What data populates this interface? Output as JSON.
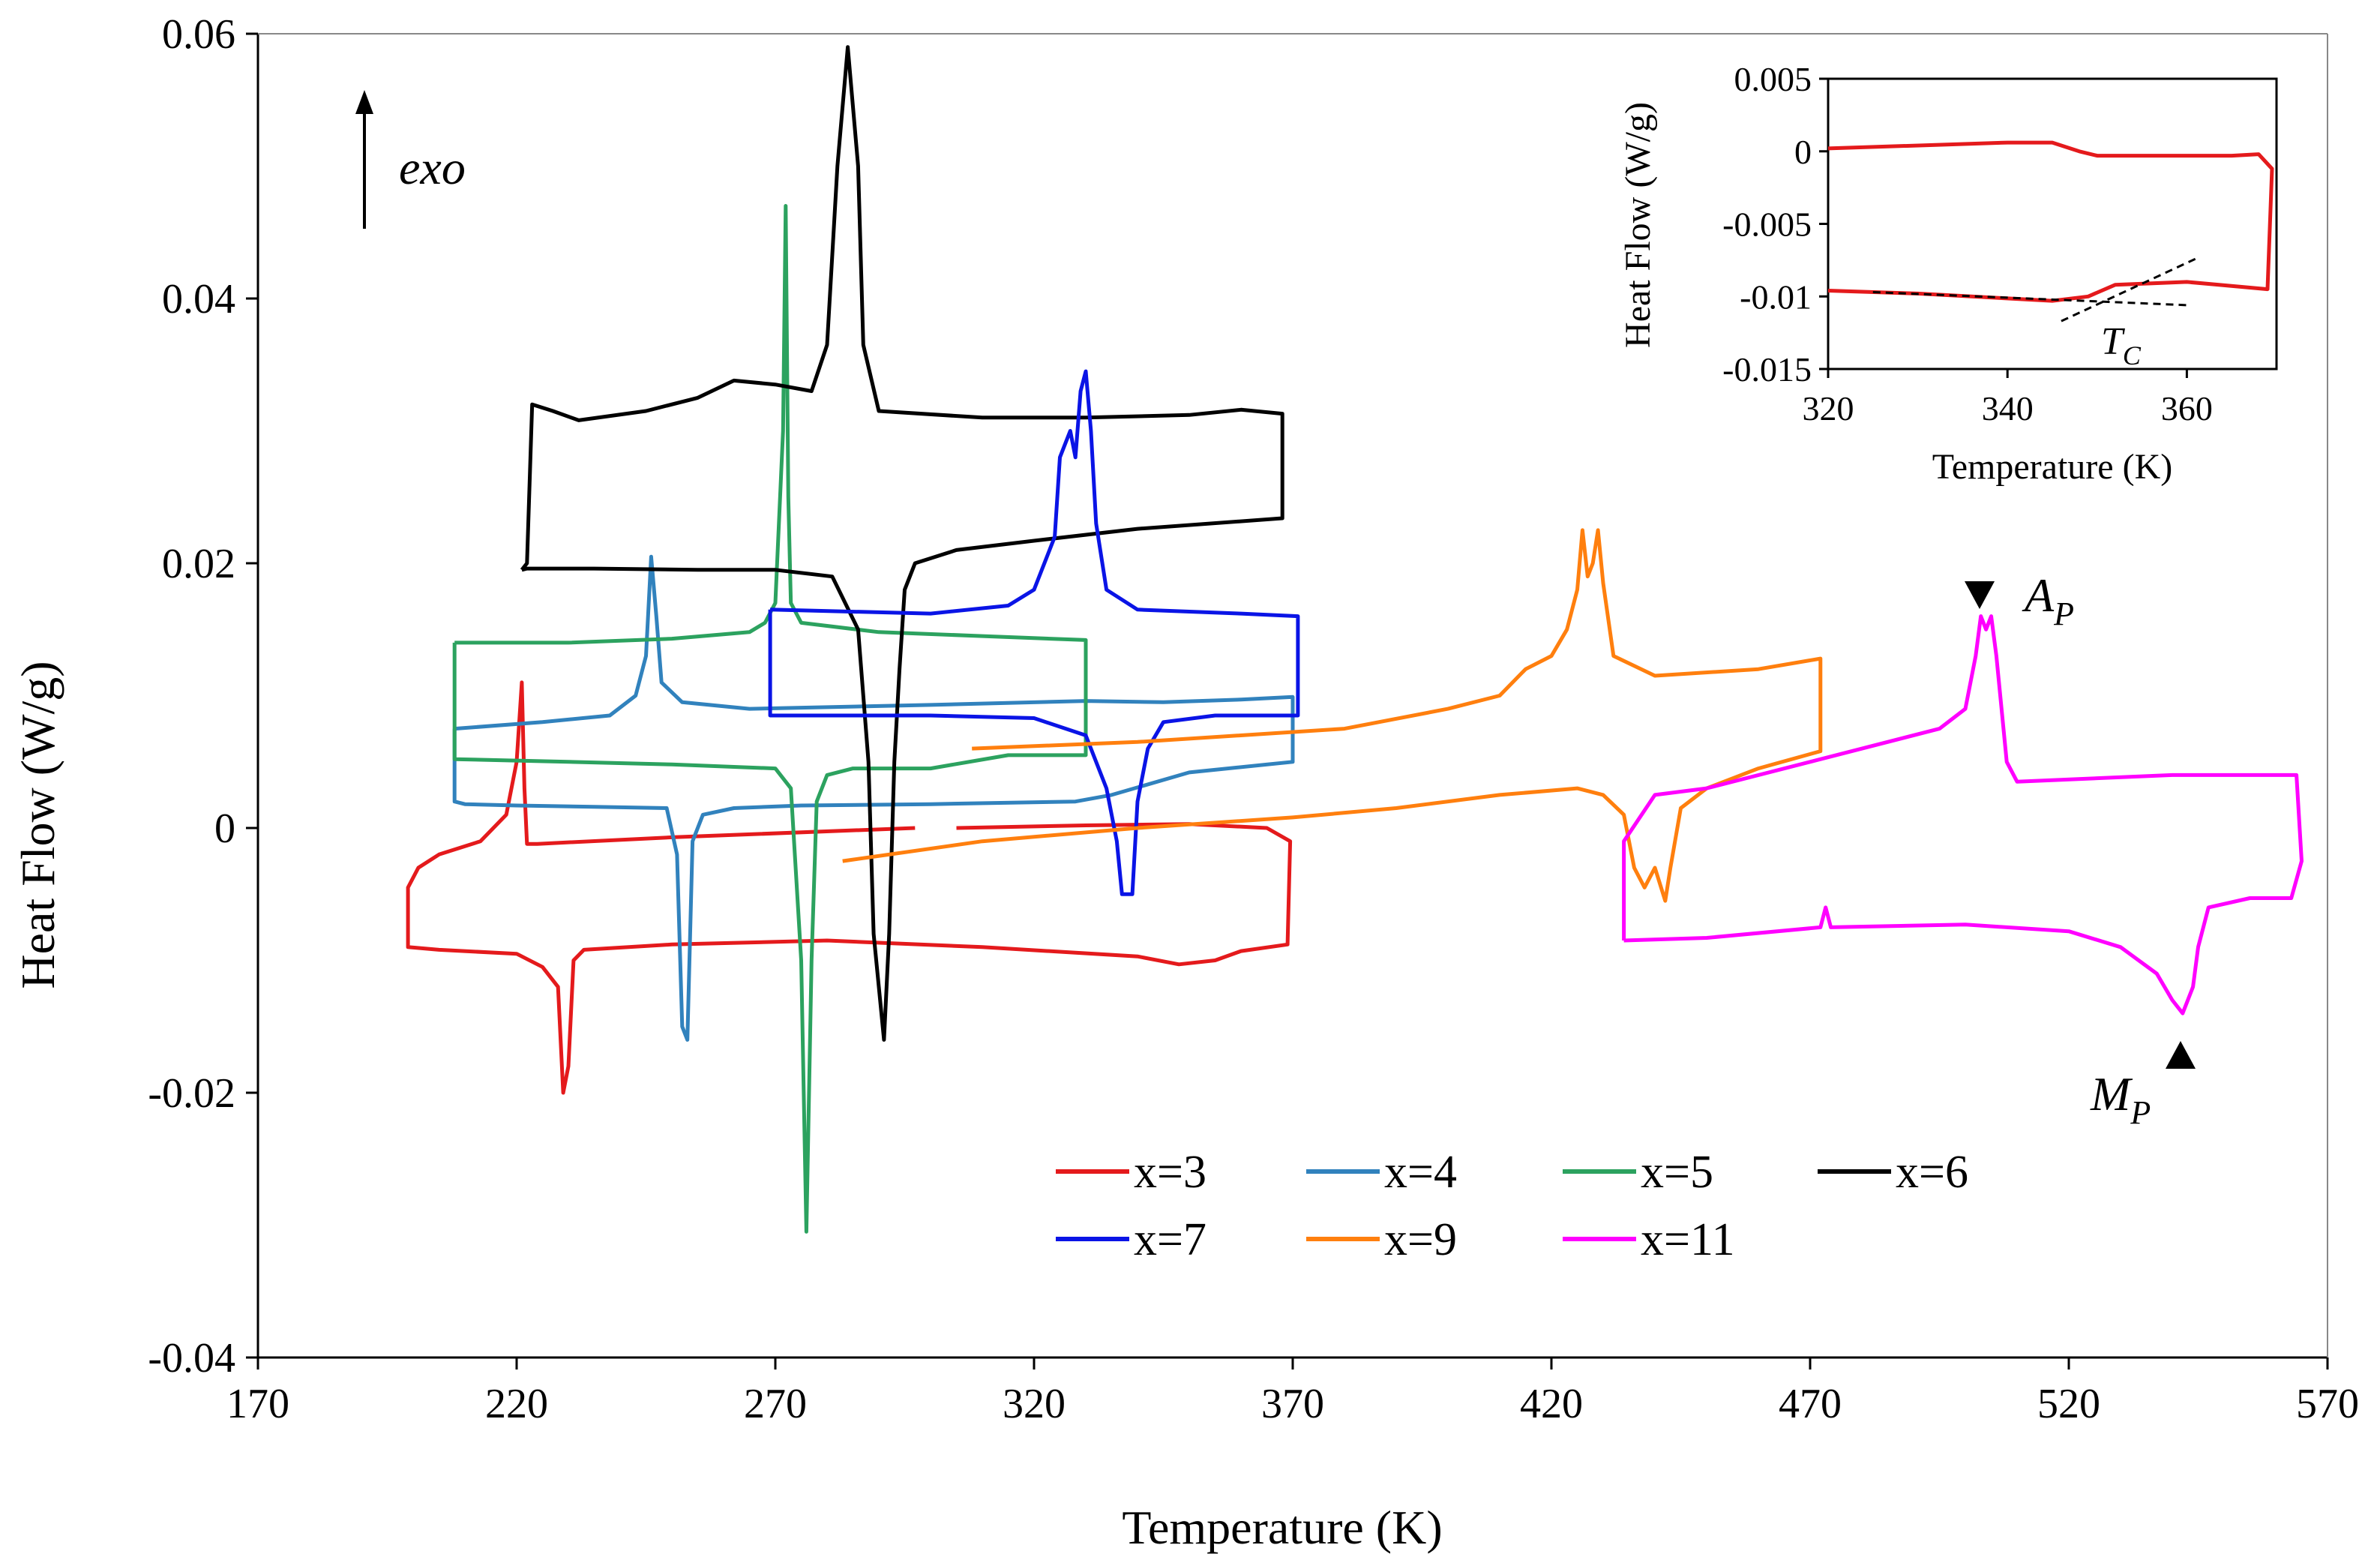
{
  "chart_data": {
    "type": "line",
    "title": "",
    "xlabel": "Temperature (K)",
    "ylabel": "Heat Flow (W/g)",
    "xlim": [
      170,
      570
    ],
    "ylim": [
      -0.04,
      0.06
    ],
    "xticks": [
      170,
      220,
      270,
      320,
      370,
      420,
      470,
      520,
      570
    ],
    "xtick_labels": [
      "170",
      "220",
      "270",
      "320",
      "370",
      "420",
      "470",
      "520",
      "570"
    ],
    "yticks": [
      -0.04,
      -0.02,
      0,
      0.02,
      0.04,
      0.06
    ],
    "ytick_labels": [
      "-0.04",
      "-0.02",
      "0",
      "0.02",
      "0.04",
      "0.06"
    ],
    "grid": false,
    "legend_position": "bottom-center",
    "annotations": {
      "exo": "exo",
      "ap_main": "A",
      "ap_sub": "P",
      "mp_main": "M",
      "mp_sub": "P",
      "tc_main": "T",
      "tc_sub": "C"
    },
    "series": [
      {
        "name": "x=3",
        "color": "#e41a1c",
        "points": [
          [
            297,
            0.0
          ],
          [
            250,
            -0.0007
          ],
          [
            224,
            -0.0012
          ],
          [
            222,
            -0.0012
          ],
          [
            221.5,
            0.003
          ],
          [
            221,
            0.011
          ],
          [
            220,
            0.005
          ],
          [
            218,
            0.001
          ],
          [
            213,
            -0.001
          ],
          [
            205,
            -0.002
          ],
          [
            201,
            -0.003
          ],
          [
            199,
            -0.0045
          ],
          [
            199,
            -0.009
          ],
          [
            205,
            -0.0092
          ],
          [
            220,
            -0.0095
          ],
          [
            225,
            -0.0105
          ],
          [
            228,
            -0.012
          ],
          [
            229,
            -0.02
          ],
          [
            230,
            -0.018
          ],
          [
            231,
            -0.01
          ],
          [
            233,
            -0.0092
          ],
          [
            250,
            -0.0088
          ],
          [
            280,
            -0.0085
          ],
          [
            310,
            -0.009
          ],
          [
            340,
            -0.0097
          ],
          [
            348,
            -0.0103
          ],
          [
            355,
            -0.01
          ],
          [
            360,
            -0.0093
          ],
          [
            369,
            -0.0088
          ],
          [
            369.5,
            -0.001
          ],
          [
            365,
            0.0
          ],
          [
            350,
            0.0003
          ],
          [
            330,
            0.0002
          ],
          [
            305,
            0.0
          ]
        ]
      },
      {
        "name": "x=4",
        "color": "#3182bd",
        "points": [
          [
            208,
            0.0075
          ],
          [
            225,
            0.008
          ],
          [
            238,
            0.0085
          ],
          [
            243,
            0.01
          ],
          [
            245,
            0.013
          ],
          [
            246,
            0.0205
          ],
          [
            247,
            0.016
          ],
          [
            248,
            0.011
          ],
          [
            252,
            0.0095
          ],
          [
            265,
            0.009
          ],
          [
            300,
            0.0093
          ],
          [
            330,
            0.0096
          ],
          [
            345,
            0.0095
          ],
          [
            360,
            0.0097
          ],
          [
            370,
            0.0099
          ],
          [
            370,
            0.005
          ],
          [
            350,
            0.0042
          ],
          [
            335,
            0.0025
          ],
          [
            328,
            0.002
          ],
          [
            300,
            0.0018
          ],
          [
            275,
            0.0017
          ],
          [
            262,
            0.0015
          ],
          [
            256,
            0.001
          ],
          [
            254,
            -0.001
          ],
          [
            253,
            -0.016
          ],
          [
            252,
            -0.015
          ],
          [
            251,
            -0.002
          ],
          [
            249,
            0.0015
          ],
          [
            235,
            0.0016
          ],
          [
            220,
            0.0017
          ],
          [
            210,
            0.0018
          ],
          [
            208,
            0.002
          ],
          [
            208,
            0.0075
          ]
        ]
      },
      {
        "name": "x=5",
        "color": "#2ca25f",
        "points": [
          [
            208,
            0.014
          ],
          [
            230,
            0.014
          ],
          [
            250,
            0.0143
          ],
          [
            265,
            0.0148
          ],
          [
            268,
            0.0155
          ],
          [
            270,
            0.017
          ],
          [
            271.5,
            0.03
          ],
          [
            272,
            0.047
          ],
          [
            272.5,
            0.025
          ],
          [
            273,
            0.017
          ],
          [
            275,
            0.0155
          ],
          [
            290,
            0.0148
          ],
          [
            310,
            0.0145
          ],
          [
            330,
            0.0142
          ],
          [
            330,
            0.0055
          ],
          [
            315,
            0.0055
          ],
          [
            300,
            0.0045
          ],
          [
            285,
            0.0045
          ],
          [
            280,
            0.004
          ],
          [
            278,
            0.002
          ],
          [
            277,
            -0.01
          ],
          [
            276,
            -0.0305
          ],
          [
            275,
            -0.01
          ],
          [
            273,
            0.003
          ],
          [
            270,
            0.0045
          ],
          [
            250,
            0.0048
          ],
          [
            230,
            0.005
          ],
          [
            208,
            0.0052
          ],
          [
            208,
            0.014
          ]
        ]
      },
      {
        "name": "x=6",
        "color": "#000000",
        "points": [
          [
            221,
            0.0195
          ],
          [
            222,
            0.02
          ],
          [
            223,
            0.032
          ],
          [
            227,
            0.0315
          ],
          [
            232,
            0.0308
          ],
          [
            245,
            0.0315
          ],
          [
            255,
            0.0325
          ],
          [
            262,
            0.0338
          ],
          [
            270,
            0.0335
          ],
          [
            277,
            0.033
          ],
          [
            280,
            0.0365
          ],
          [
            282,
            0.05
          ],
          [
            284,
            0.059
          ],
          [
            286,
            0.05
          ],
          [
            287,
            0.0365
          ],
          [
            290,
            0.0315
          ],
          [
            310,
            0.031
          ],
          [
            330,
            0.031
          ],
          [
            350,
            0.0312
          ],
          [
            360,
            0.0316
          ],
          [
            368,
            0.0313
          ],
          [
            368,
            0.0234
          ],
          [
            340,
            0.0226
          ],
          [
            320,
            0.0217
          ],
          [
            305,
            0.021
          ],
          [
            297,
            0.02
          ],
          [
            295,
            0.018
          ],
          [
            294,
            0.012
          ],
          [
            293,
            0.005
          ],
          [
            292,
            -0.008
          ],
          [
            291,
            -0.016
          ],
          [
            289,
            -0.008
          ],
          [
            288,
            0.005
          ],
          [
            286,
            0.015
          ],
          [
            281,
            0.019
          ],
          [
            270,
            0.0195
          ],
          [
            255,
            0.0195
          ],
          [
            235,
            0.0196
          ],
          [
            222,
            0.0196
          ],
          [
            221,
            0.0195
          ]
        ]
      },
      {
        "name": "x=7",
        "color": "#0a14e6",
        "points": [
          [
            269,
            0.0165
          ],
          [
            300,
            0.0162
          ],
          [
            315,
            0.0168
          ],
          [
            320,
            0.018
          ],
          [
            324,
            0.022
          ],
          [
            325,
            0.028
          ],
          [
            327,
            0.03
          ],
          [
            328,
            0.028
          ],
          [
            329,
            0.033
          ],
          [
            330,
            0.0345
          ],
          [
            331,
            0.03
          ],
          [
            332,
            0.023
          ],
          [
            334,
            0.018
          ],
          [
            340,
            0.0165
          ],
          [
            360,
            0.0162
          ],
          [
            371,
            0.016
          ],
          [
            371,
            0.0085
          ],
          [
            355,
            0.0085
          ],
          [
            345,
            0.008
          ],
          [
            342,
            0.006
          ],
          [
            340,
            0.002
          ],
          [
            339,
            -0.005
          ],
          [
            337,
            -0.005
          ],
          [
            336,
            -0.001
          ],
          [
            334,
            0.003
          ],
          [
            330,
            0.007
          ],
          [
            320,
            0.0083
          ],
          [
            300,
            0.0085
          ],
          [
            285,
            0.0085
          ],
          [
            269,
            0.0085
          ],
          [
            269,
            0.0165
          ]
        ]
      },
      {
        "name": "x=9",
        "color": "#ff7f0e",
        "points": [
          [
            308,
            0.006
          ],
          [
            340,
            0.0065
          ],
          [
            380,
            0.0075
          ],
          [
            400,
            0.009
          ],
          [
            410,
            0.01
          ],
          [
            415,
            0.012
          ],
          [
            420,
            0.013
          ],
          [
            423,
            0.015
          ],
          [
            425,
            0.018
          ],
          [
            426,
            0.0225
          ],
          [
            427,
            0.019
          ],
          [
            428,
            0.02
          ],
          [
            429,
            0.0225
          ],
          [
            430,
            0.0185
          ],
          [
            432,
            0.013
          ],
          [
            440,
            0.0115
          ],
          [
            460,
            0.012
          ],
          [
            472,
            0.0128
          ],
          [
            472,
            0.0058
          ],
          [
            460,
            0.0045
          ],
          [
            450,
            0.003
          ],
          [
            445,
            0.0015
          ],
          [
            443,
            -0.003
          ],
          [
            442,
            -0.0055
          ],
          [
            440,
            -0.003
          ],
          [
            438,
            -0.0045
          ],
          [
            436,
            -0.003
          ],
          [
            434,
            0.001
          ],
          [
            430,
            0.0025
          ],
          [
            425,
            0.003
          ],
          [
            410,
            0.0025
          ],
          [
            390,
            0.0015
          ],
          [
            370,
            0.0008
          ],
          [
            340,
            0.0
          ],
          [
            310,
            -0.001
          ],
          [
            283,
            -0.0025
          ]
        ]
      },
      {
        "name": "x=11",
        "color": "#ff00ff",
        "points": [
          [
            434,
            -0.0085
          ],
          [
            450,
            -0.0083
          ],
          [
            472,
            -0.0075
          ],
          [
            473,
            -0.006
          ],
          [
            474,
            -0.0075
          ],
          [
            500,
            -0.0073
          ],
          [
            520,
            -0.0078
          ],
          [
            530,
            -0.009
          ],
          [
            537,
            -0.011
          ],
          [
            540,
            -0.013
          ],
          [
            542,
            -0.014
          ],
          [
            544,
            -0.012
          ],
          [
            545,
            -0.009
          ],
          [
            547,
            -0.006
          ],
          [
            555,
            -0.0053
          ],
          [
            563,
            -0.0053
          ],
          [
            565,
            -0.0025
          ],
          [
            564,
            0.004
          ],
          [
            540,
            0.004
          ],
          [
            510,
            0.0035
          ],
          [
            508,
            0.005
          ],
          [
            506,
            0.013
          ],
          [
            505,
            0.016
          ],
          [
            504,
            0.015
          ],
          [
            503,
            0.016
          ],
          [
            502,
            0.013
          ],
          [
            500,
            0.009
          ],
          [
            495,
            0.0075
          ],
          [
            470,
            0.005
          ],
          [
            450,
            0.003
          ],
          [
            440,
            0.0025
          ],
          [
            434,
            -0.001
          ],
          [
            434,
            -0.0085
          ]
        ]
      }
    ],
    "inset": {
      "type": "line",
      "xlabel": "Temperature (K)",
      "ylabel": "Heat Flow (W/g)",
      "xlim": [
        320,
        370
      ],
      "ylim": [
        -0.015,
        0.005
      ],
      "xticks": [
        320,
        340,
        360
      ],
      "xtick_labels": [
        "320",
        "340",
        "360"
      ],
      "yticks": [
        0.005,
        0,
        -0.005,
        -0.01,
        -0.015
      ],
      "ytick_labels": [
        "0.005",
        "0",
        "-0.005",
        "-0.01",
        "-0.015"
      ],
      "series": [
        {
          "name": "x=3",
          "color": "#e41a1c",
          "points": [
            [
              320,
              0.0002
            ],
            [
              340,
              0.0006
            ],
            [
              345,
              0.0006
            ],
            [
              348,
              0.0
            ],
            [
              350,
              -0.0003
            ],
            [
              360,
              -0.0003
            ],
            [
              365,
              -0.0003
            ],
            [
              368,
              -0.0002
            ],
            [
              369.5,
              -0.0012
            ],
            [
              369,
              -0.0095
            ],
            [
              360,
              -0.009
            ],
            [
              352,
              -0.0092
            ],
            [
              349,
              -0.01
            ],
            [
              345,
              -0.0103
            ],
            [
              330,
              -0.0098
            ],
            [
              320,
              -0.0096
            ]
          ]
        }
      ],
      "tangent_lines": [
        {
          "points": [
            [
              325,
              -0.0097
            ],
            [
              360,
              -0.0106
            ]
          ]
        },
        {
          "points": [
            [
              346,
              -0.0117
            ],
            [
              361,
              -0.0074
            ]
          ]
        }
      ]
    }
  },
  "legend": [
    {
      "label": "x=3",
      "color": "#e41a1c"
    },
    {
      "label": "x=4",
      "color": "#3182bd"
    },
    {
      "label": "x=5",
      "color": "#2ca25f"
    },
    {
      "label": "x=6",
      "color": "#000000"
    },
    {
      "label": "x=7",
      "color": "#0a14e6"
    },
    {
      "label": "x=9",
      "color": "#ff7f0e"
    },
    {
      "label": "x=11",
      "color": "#ff00ff"
    }
  ]
}
